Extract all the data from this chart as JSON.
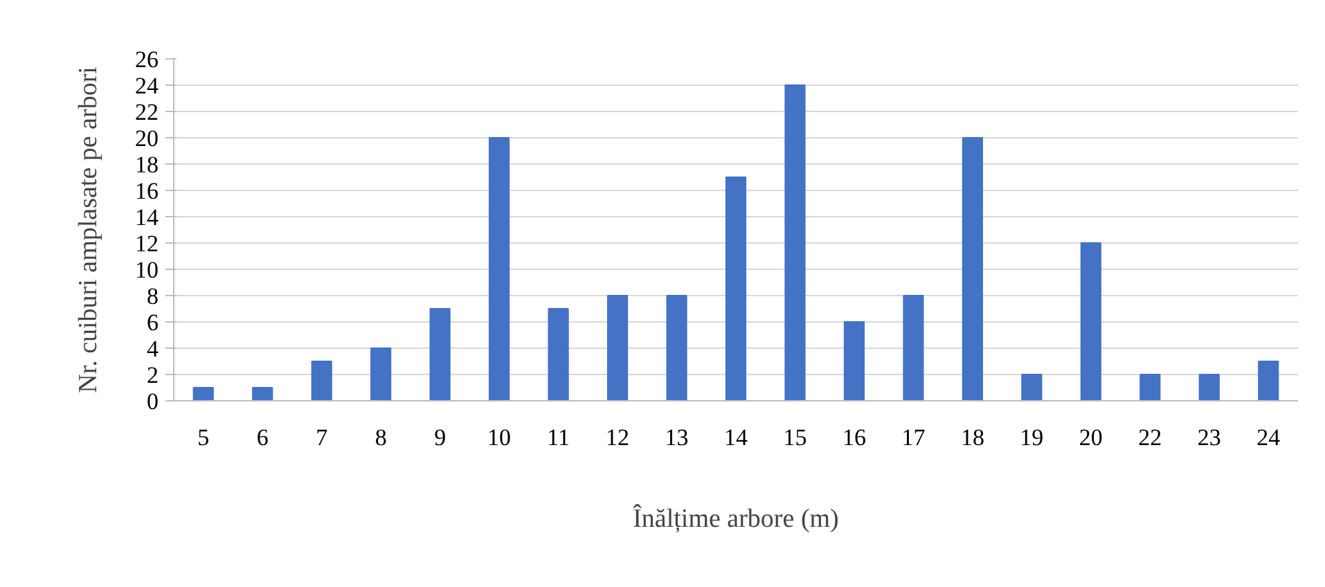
{
  "chart_data": {
    "type": "bar",
    "xlabel": "Înălțime arbore (m)",
    "ylabel": "Nr. cuiburi amplasate pe arbori",
    "categories": [
      "5",
      "6",
      "7",
      "8",
      "9",
      "10",
      "11",
      "12",
      "13",
      "14",
      "15",
      "16",
      "17",
      "18",
      "19",
      "20",
      "22",
      "23",
      "24"
    ],
    "values": [
      1,
      1,
      3,
      4,
      7,
      20,
      7,
      8,
      8,
      17,
      24,
      6,
      8,
      20,
      2,
      12,
      2,
      2,
      3
    ],
    "color": "#4472c4",
    "ylim": [
      0,
      26
    ],
    "yticks": [
      0,
      2,
      4,
      6,
      8,
      10,
      12,
      14,
      16,
      18,
      20,
      22,
      24,
      26
    ],
    "grid": "y"
  }
}
